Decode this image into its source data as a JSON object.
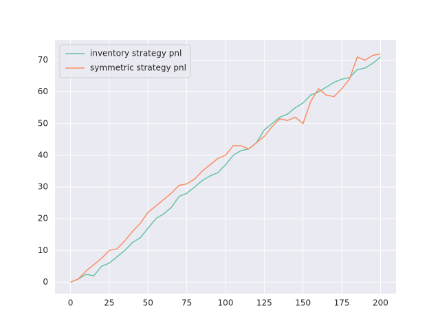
{
  "chart_data": {
    "type": "line",
    "x": [
      0,
      5,
      10,
      15,
      20,
      25,
      30,
      35,
      40,
      45,
      50,
      55,
      60,
      65,
      70,
      75,
      80,
      85,
      90,
      95,
      100,
      105,
      110,
      115,
      120,
      125,
      130,
      135,
      140,
      145,
      150,
      155,
      160,
      165,
      170,
      175,
      180,
      185,
      190,
      195,
      200
    ],
    "series": [
      {
        "name": "inventory strategy pnl",
        "color": "#66c2a5",
        "values": [
          0,
          1,
          2.5,
          2,
          5,
          6,
          8,
          10,
          12.5,
          14,
          17,
          20,
          21.5,
          23.5,
          27,
          28,
          30,
          32,
          33.5,
          34.5,
          37,
          40,
          41.5,
          42,
          44,
          48,
          50,
          52,
          53,
          55,
          56.5,
          59,
          60,
          61.5,
          63,
          64,
          64.5,
          67,
          67.5,
          69,
          71
        ]
      },
      {
        "name": "symmetric strategy pnl",
        "color": "#fc8d62",
        "values": [
          0,
          1,
          3.5,
          5.5,
          7.5,
          10,
          10.5,
          13,
          16,
          18.5,
          22,
          24,
          26,
          28,
          30.5,
          31,
          32.5,
          35,
          37,
          39,
          40,
          43,
          43,
          42,
          44,
          46,
          49,
          51.5,
          51,
          52,
          50,
          57,
          61,
          59,
          58.5,
          61,
          64,
          71,
          70,
          71.5,
          72
        ]
      }
    ],
    "xlim": [
      -10,
      210
    ],
    "ylim": [
      -3.6,
      76.4
    ],
    "xticks": [
      0,
      25,
      50,
      75,
      100,
      125,
      150,
      175,
      200
    ],
    "yticks": [
      0,
      10,
      20,
      30,
      40,
      50,
      60,
      70
    ],
    "grid": true,
    "legend": "upper left",
    "background": "#eaeaf2"
  }
}
